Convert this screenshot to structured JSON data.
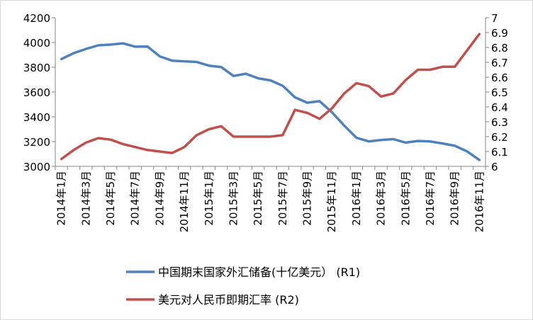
{
  "chart_data": {
    "type": "line",
    "title": "",
    "grid": false,
    "legend_position": "bottom",
    "x": [
      "2014年1月",
      "2014年2月",
      "2014年3月",
      "2014年4月",
      "2014年5月",
      "2014年6月",
      "2014年7月",
      "2014年8月",
      "2014年9月",
      "2014年10月",
      "2014年11月",
      "2014年12月",
      "2015年1月",
      "2015年2月",
      "2015年3月",
      "2015年4月",
      "2015年5月",
      "2015年6月",
      "2015年7月",
      "2015年8月",
      "2015年9月",
      "2015年10月",
      "2015年11月",
      "2015年12月",
      "2016年1月",
      "2016年2月",
      "2016年3月",
      "2016年4月",
      "2016年5月",
      "2016年6月",
      "2016年7月",
      "2016年8月",
      "2016年9月",
      "2016年10月",
      "2016年11月"
    ],
    "x_tick_labels": [
      "2014年1月",
      "2014年3月",
      "2014年5月",
      "2014年7月",
      "2014年9月",
      "2014年11月",
      "2015年1月",
      "2015年3月",
      "2015年5月",
      "2015年7月",
      "2015年9月",
      "2015年11月",
      "2016年1月",
      "2016年3月",
      "2016年5月",
      "2016年7月",
      "2016年9月",
      "2016年11月"
    ],
    "y_left": {
      "ylim": [
        3000,
        4200
      ],
      "ticks": [
        "3000",
        "3200",
        "3400",
        "3600",
        "3800",
        "4000",
        "4200"
      ]
    },
    "y_right": {
      "ylim": [
        6,
        7
      ],
      "ticks": [
        "6",
        "6.1",
        "6.2",
        "6.3",
        "6.4",
        "6.5",
        "6.6",
        "6.7",
        "6.8",
        "6.9",
        "7"
      ]
    },
    "series": [
      {
        "name": "中国期末国家外汇储备(十亿美元） (R1)",
        "axis": "left",
        "color": "#4f81bd",
        "values": [
          3866,
          3914,
          3948,
          3977,
          3983,
          3993,
          3966,
          3967,
          3888,
          3853,
          3848,
          3843,
          3813,
          3802,
          3730,
          3748,
          3711,
          3694,
          3651,
          3557,
          3514,
          3526,
          3438,
          3330,
          3231,
          3202,
          3213,
          3220,
          3192,
          3205,
          3201,
          3185,
          3166,
          3121,
          3052
        ]
      },
      {
        "name": "美元对人民币即期汇率 (R2)",
        "axis": "right",
        "color": "#c0504d",
        "values": [
          6.05,
          6.11,
          6.16,
          6.19,
          6.18,
          6.15,
          6.13,
          6.11,
          6.1,
          6.09,
          6.13,
          6.21,
          6.25,
          6.27,
          6.2,
          6.2,
          6.2,
          6.2,
          6.21,
          6.38,
          6.36,
          6.32,
          6.39,
          6.49,
          6.56,
          6.54,
          6.47,
          6.49,
          6.58,
          6.65,
          6.65,
          6.67,
          6.67,
          6.78,
          6.89
        ]
      }
    ]
  }
}
